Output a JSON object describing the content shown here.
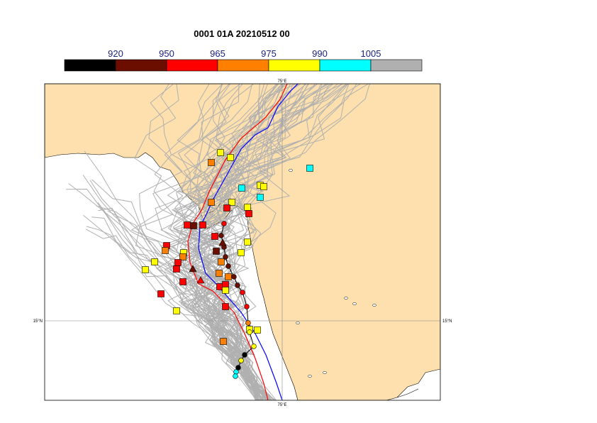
{
  "title": "0001 01A 20210512 00",
  "legend": {
    "ticks": [
      "920",
      "950",
      "965",
      "975",
      "990",
      "1005"
    ],
    "colors": [
      "#000000",
      "#6b0e00",
      "#ff0000",
      "#ff8000",
      "#ffff00",
      "#00ffff",
      "#b0b0b0"
    ]
  },
  "grid": {
    "lon_label": "75°E",
    "lat_label": "15°N"
  },
  "colors": {
    "land": "#fde0ad",
    "sea": "#ffffff",
    "track_gray": "#b0b0b0",
    "track_red": "#ff0000",
    "track_blue": "#0000ff",
    "track_black": "#000000"
  }
}
